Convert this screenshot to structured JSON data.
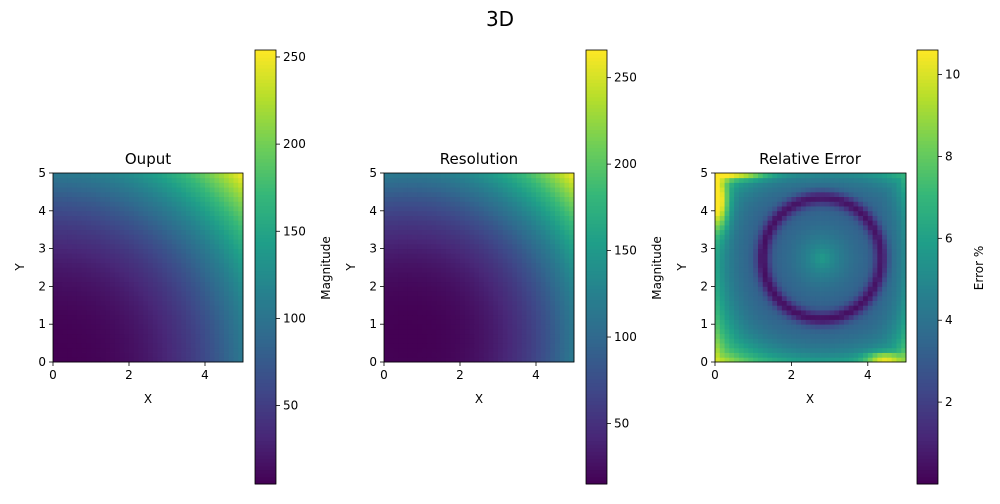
{
  "figure": {
    "suptitle": "3D"
  },
  "colormap": [
    "#440154",
    "#482878",
    "#3e4989",
    "#31688e",
    "#26828e",
    "#1f9e89",
    "#35b779",
    "#6ece58",
    "#b5de2b",
    "#fde725"
  ],
  "chart_data": [
    {
      "type": "heatmap",
      "title": "Ouput",
      "xlabel": "X",
      "ylabel": "Y",
      "xlim": [
        0,
        5
      ],
      "ylim": [
        0,
        5
      ],
      "x_ticks": [
        "0",
        "2",
        "4"
      ],
      "y_ticks": [
        "0",
        "1",
        "2",
        "3",
        "4",
        "5"
      ],
      "grid": {
        "nx": 40,
        "ny": 40
      },
      "field": "output",
      "value_range": [
        5,
        254
      ],
      "colorbar": {
        "label": "Magnitude",
        "ticks": [
          "50",
          "100",
          "150",
          "200",
          "250"
        ],
        "tick_values": [
          50,
          100,
          150,
          200,
          250
        ]
      }
    },
    {
      "type": "heatmap",
      "title": "Resolution",
      "xlabel": "X",
      "ylabel": "Y",
      "xlim": [
        0,
        5
      ],
      "ylim": [
        0,
        5
      ],
      "x_ticks": [
        "0",
        "2",
        "4"
      ],
      "y_ticks": [
        "0",
        "1",
        "2",
        "3",
        "4",
        "5"
      ],
      "grid": {
        "nx": 40,
        "ny": 40
      },
      "field": "resolution",
      "value_range": [
        15,
        266
      ],
      "colorbar": {
        "label": "Magnitude",
        "ticks": [
          "50",
          "100",
          "150",
          "200",
          "250"
        ],
        "tick_values": [
          50,
          100,
          150,
          200,
          250
        ]
      }
    },
    {
      "type": "heatmap",
      "title": "Relative Error",
      "xlabel": "X",
      "ylabel": "Y",
      "xlim": [
        0,
        5
      ],
      "ylim": [
        0,
        5
      ],
      "x_ticks": [
        "0",
        "2",
        "4"
      ],
      "y_ticks": [
        "0",
        "1",
        "2",
        "3",
        "4",
        "5"
      ],
      "grid": {
        "nx": 40,
        "ny": 40
      },
      "field": "relative_error",
      "value_range": [
        0,
        10.6
      ],
      "colorbar": {
        "label": "Error %",
        "ticks": [
          "2",
          "4",
          "6",
          "8",
          "10"
        ],
        "tick_values": [
          2,
          4,
          6,
          8,
          10
        ]
      }
    }
  ]
}
